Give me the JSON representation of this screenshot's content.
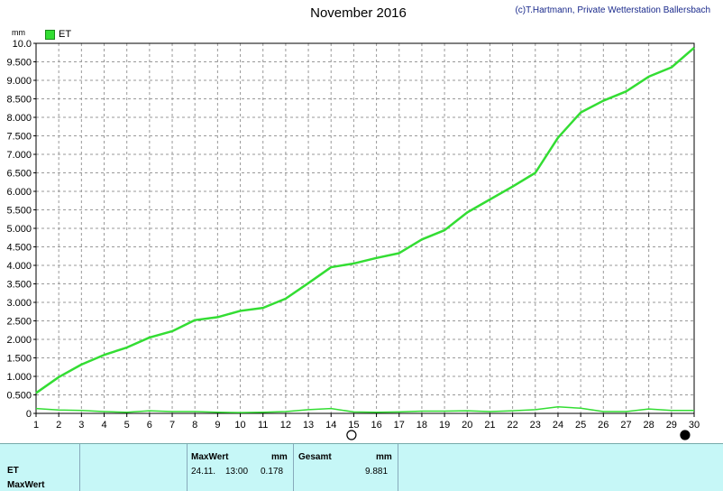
{
  "header": {
    "title": "November 2016",
    "copyright": "(c)T.Hartmann, Private Wetterstation Ballersbach",
    "unit": "mm"
  },
  "legend": {
    "label": "ET",
    "color": "#33dd33"
  },
  "chart_data": {
    "type": "line",
    "x": [
      1,
      2,
      3,
      4,
      5,
      6,
      7,
      8,
      9,
      10,
      11,
      12,
      13,
      14,
      15,
      16,
      17,
      18,
      19,
      20,
      21,
      22,
      23,
      24,
      25,
      26,
      27,
      28,
      29,
      30
    ],
    "xlim": [
      1,
      30
    ],
    "ylim": [
      0,
      10
    ],
    "yticks": [
      "0",
      "0.500",
      "1.000",
      "1.500",
      "2.000",
      "2.500",
      "3.000",
      "3.500",
      "4.000",
      "4.500",
      "5.000",
      "5.500",
      "6.000",
      "6.500",
      "7.000",
      "7.500",
      "8.000",
      "8.500",
      "9.000",
      "9.500",
      "10.0"
    ],
    "grid": true,
    "series": [
      {
        "name": "ET",
        "color": "#33dd33",
        "values": [
          0.55,
          0.98,
          1.32,
          1.58,
          1.78,
          2.05,
          2.22,
          2.52,
          2.6,
          2.77,
          2.85,
          3.1,
          3.52,
          3.95,
          4.05,
          4.2,
          4.33,
          4.7,
          4.95,
          5.43,
          5.78,
          6.13,
          6.5,
          7.45,
          8.13,
          8.45,
          8.7,
          9.1,
          9.35,
          9.88
        ]
      },
      {
        "color": "#33dd33",
        "values": [
          0.13,
          0.09,
          0.08,
          0.05,
          0.03,
          0.07,
          0.05,
          0.05,
          0.03,
          0.02,
          0.03,
          0.05,
          0.1,
          0.13,
          0.04,
          0.03,
          0.04,
          0.06,
          0.06,
          0.07,
          0.05,
          0.07,
          0.1,
          0.178,
          0.14,
          0.05,
          0.05,
          0.12,
          0.08,
          0.08
        ]
      }
    ]
  },
  "table": {
    "row1_label": "ET",
    "row2_label": "MaxWert",
    "maxwert_header": "MaxWert",
    "maxwert_unit": "mm",
    "maxwert_date": "24.11.",
    "maxwert_time": "13:00",
    "maxwert_value": "0.178",
    "gesamt_header": "Gesamt",
    "gesamt_unit": "mm",
    "gesamt_value": "9.881"
  }
}
